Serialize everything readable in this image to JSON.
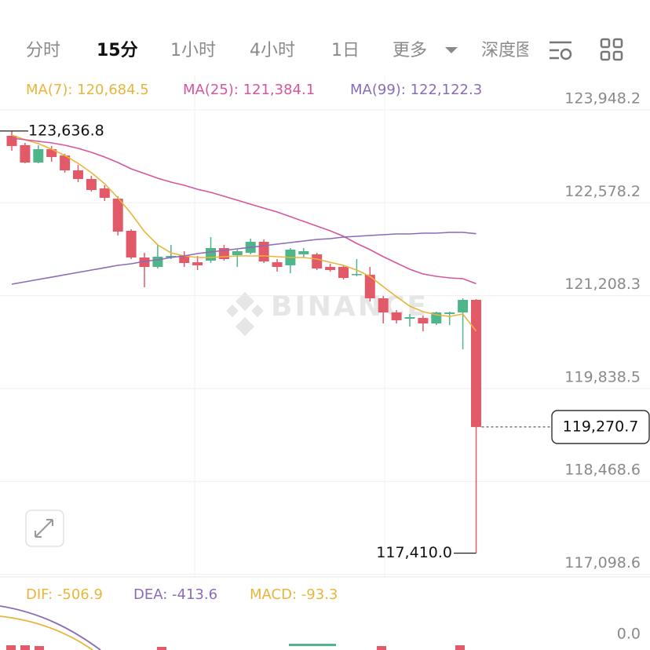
{
  "tabs": [
    "分时",
    "15分",
    "1小时",
    "4小时",
    "1日",
    "更多",
    "深度图"
  ],
  "watermark": "BINANCE",
  "chart_data": {
    "type": "candlestick",
    "up_color": "#4fb58a",
    "down_color": "#e25a68",
    "ylim": [
      117058.1,
      124411.4
    ],
    "yticks": [
      {
        "value": 123948.2,
        "label": "123,948.2"
      },
      {
        "value": 122578.2,
        "label": "122,578.2"
      },
      {
        "value": 121208.3,
        "label": "121,208.3"
      },
      {
        "value": 119838.5,
        "label": "119,838.5"
      },
      {
        "value": 118468.6,
        "label": "118,468.6"
      },
      {
        "value": 117098.6,
        "label": "117,098.6"
      }
    ],
    "grid": true,
    "open": [
      123566,
      123427,
      123172,
      123369,
      123276,
      123056,
      122929,
      122790,
      122639,
      122165,
      121771,
      121632,
      121771,
      121806,
      121701,
      121725,
      121910,
      121806,
      121840,
      122003,
      121701,
      121655,
      121817,
      121817,
      121632,
      121632,
      121516,
      121516,
      121169,
      120960,
      120868,
      120879,
      120798,
      120937,
      120960,
      121146
    ],
    "high": [
      123636.8,
      123462,
      123427,
      123415,
      123300,
      123137,
      122975,
      122836,
      122674,
      122188,
      121840,
      121956,
      121956,
      121864,
      121794,
      122072,
      121956,
      121887,
      122049,
      122037,
      121748,
      121910,
      121910,
      121840,
      121678,
      121655,
      121748,
      121632,
      121204,
      120995,
      120937,
      120914,
      120972,
      120972,
      121169,
      121157
    ],
    "low": [
      123346,
      123161,
      123161,
      123184,
      123022,
      122883,
      122744,
      122605,
      122095,
      121748,
      121331,
      121609,
      121748,
      121632,
      121586,
      121690,
      121725,
      121632,
      121817,
      121690,
      121563,
      121539,
      121771,
      121586,
      121563,
      121447,
      121493,
      121122,
      120798,
      120798,
      120752,
      120682,
      120775,
      120775,
      120416,
      117410.0
    ],
    "close": [
      123415,
      123172,
      123369,
      123253,
      123056,
      122929,
      122767,
      122651,
      122153,
      121771,
      121632,
      121783,
      121794,
      121690,
      121655,
      121910,
      121748,
      121864,
      122003,
      121713,
      121632,
      121887,
      121864,
      121609,
      121586,
      121470,
      121528,
      121169,
      120960,
      120845,
      120891,
      120798,
      120960,
      120960,
      121146,
      119270.7
    ],
    "series": [
      {
        "name": "MA(7): 120,684.5",
        "color": "#e8b53a",
        "values": [
          123577,
          123508,
          123450,
          123369,
          123276,
          123161,
          123022,
          122859,
          122651,
          122419,
          122153,
          121956,
          121840,
          121794,
          121771,
          121771,
          121783,
          121794,
          121794,
          121794,
          121783,
          121771,
          121771,
          121748,
          121701,
          121655,
          121586,
          121493,
          121342,
          121192,
          121053,
          120972,
          120926,
          120902,
          120937,
          120684.5
        ]
      },
      {
        "name": "MA(25): 121,384.1",
        "color": "#d6559e",
        "values": [
          123531,
          123508,
          123485,
          123462,
          123427,
          123381,
          123323,
          123253,
          123172,
          123079,
          123010,
          122941,
          122883,
          122836,
          122778,
          122732,
          122674,
          122616,
          122558,
          122500,
          122443,
          122373,
          122304,
          122234,
          122165,
          122084,
          121979,
          121887,
          121783,
          121690,
          121597,
          121528,
          121493,
          121470,
          121458,
          121384.1
        ]
      },
      {
        "name": "MA(99): 122,122.3",
        "color": "#8a6bb8",
        "values": [
          121377,
          121412,
          121447,
          121481,
          121516,
          121551,
          121586,
          121620,
          121655,
          121678,
          121713,
          121736,
          121771,
          121794,
          121829,
          121852,
          121875,
          121898,
          121921,
          121945,
          121968,
          121991,
          122014,
          122037,
          122049,
          122072,
          122084,
          122095,
          122107,
          122118,
          122118,
          122130,
          122130,
          122142,
          122142,
          122122.3
        ]
      }
    ],
    "annotations": {
      "high_label": "123,636.8",
      "low_label": "117,410.0",
      "price_label": "119,270.7"
    }
  },
  "macd_panel": {
    "legend": [
      {
        "text": "DIF: -506.9",
        "color": "#e8b53a"
      },
      {
        "text": "DEA: -413.6",
        "color": "#8a6bb8"
      },
      {
        "text": "MACD: -93.3",
        "color": "#e8b53a"
      }
    ],
    "ytick": "0.0"
  }
}
